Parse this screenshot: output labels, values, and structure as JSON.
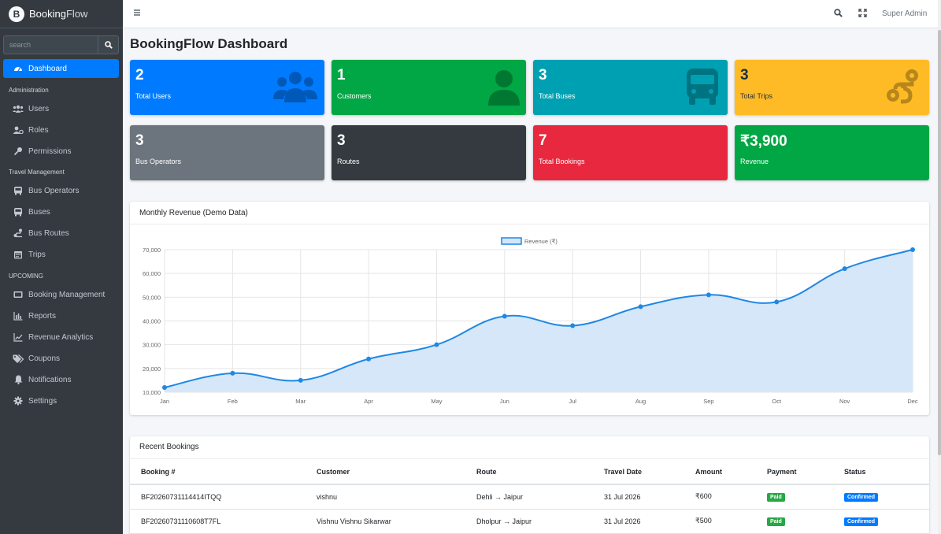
{
  "brand": {
    "logo_letter": "B",
    "name_bold": "Booking",
    "name_light": "Flow"
  },
  "sidebar": {
    "search_placeholder": "search",
    "items": [
      {
        "label": "Dashboard",
        "icon": "dashboard-icon",
        "active": true
      },
      {
        "header": "Administration"
      },
      {
        "label": "Users",
        "icon": "users-icon"
      },
      {
        "label": "Roles",
        "icon": "roles-icon"
      },
      {
        "label": "Permissions",
        "icon": "key-icon"
      },
      {
        "header": "Travel Management"
      },
      {
        "label": "Bus Operators",
        "icon": "bus-icon"
      },
      {
        "label": "Buses",
        "icon": "bus-icon"
      },
      {
        "label": "Bus Routes",
        "icon": "route-icon"
      },
      {
        "label": "Trips",
        "icon": "calendar-icon"
      },
      {
        "header": "UPCOMING"
      },
      {
        "label": "Booking Management",
        "icon": "ticket-icon"
      },
      {
        "label": "Reports",
        "icon": "bar-chart-icon"
      },
      {
        "label": "Revenue Analytics",
        "icon": "line-chart-icon"
      },
      {
        "label": "Coupons",
        "icon": "tags-icon"
      },
      {
        "label": "Notifications",
        "icon": "bell-icon"
      },
      {
        "label": "Settings",
        "icon": "gear-icon"
      }
    ]
  },
  "topbar": {
    "user": "Super Admin"
  },
  "page": {
    "title": "BookingFlow Dashboard"
  },
  "stats": [
    {
      "value": "2",
      "label": "Total Users",
      "color": "#007bff",
      "icon": "users-icon"
    },
    {
      "value": "1",
      "label": "Customers",
      "color": "#00a744",
      "icon": "user-icon"
    },
    {
      "value": "3",
      "label": "Total Buses",
      "color": "#00a0b3",
      "icon": "bus-icon"
    },
    {
      "value": "3",
      "label": "Total Trips",
      "color": "#ffbb26",
      "icon": "route-icon"
    },
    {
      "value": "3",
      "label": "Bus Operators",
      "color": "#6c757d"
    },
    {
      "value": "3",
      "label": "Routes",
      "color": "#343a40"
    },
    {
      "value": "7",
      "label": "Total Bookings",
      "color": "#e8283f"
    },
    {
      "value": "₹3,900",
      "label": "Revenue",
      "color": "#00a744"
    }
  ],
  "revenue_card": {
    "title": "Monthly Revenue (Demo Data)"
  },
  "chart_data": {
    "type": "line",
    "title": "",
    "categories": [
      "Jan",
      "Feb",
      "Mar",
      "Apr",
      "May",
      "Jun",
      "Jul",
      "Aug",
      "Sep",
      "Oct",
      "Nov",
      "Dec"
    ],
    "series": [
      {
        "name": "Revenue (₹)",
        "values": [
          12000,
          18000,
          15000,
          24000,
          30000,
          42000,
          38000,
          46000,
          51000,
          48000,
          62000,
          70000
        ]
      }
    ],
    "y_ticks": [
      "10,000",
      "20,000",
      "30,000",
      "40,000",
      "50,000",
      "60,000",
      "70,000"
    ],
    "ylim": [
      10000,
      70000
    ],
    "grid": true,
    "legend": "top-center",
    "fill": true,
    "line_color": "#1e88e5",
    "fill_color": "#d4e6fa"
  },
  "bookings": {
    "title": "Recent Bookings",
    "columns": [
      "Booking #",
      "Customer",
      "Route",
      "Travel Date",
      "Amount",
      "Payment",
      "Status"
    ],
    "rows": [
      {
        "id": "BF20260731114414ITQQ",
        "customer": "vishnu",
        "route": "Dehli → Jaipur",
        "date": "31 Jul 2026",
        "amount": "₹600",
        "payment": "Paid",
        "status": "Confirmed"
      },
      {
        "id": "BF20260731110608T7FL",
        "customer": "Vishnu Vishnu Sikarwar",
        "route": "Dholpur → Jaipur",
        "date": "31 Jul 2026",
        "amount": "₹500",
        "payment": "Paid",
        "status": "Confirmed"
      }
    ]
  }
}
